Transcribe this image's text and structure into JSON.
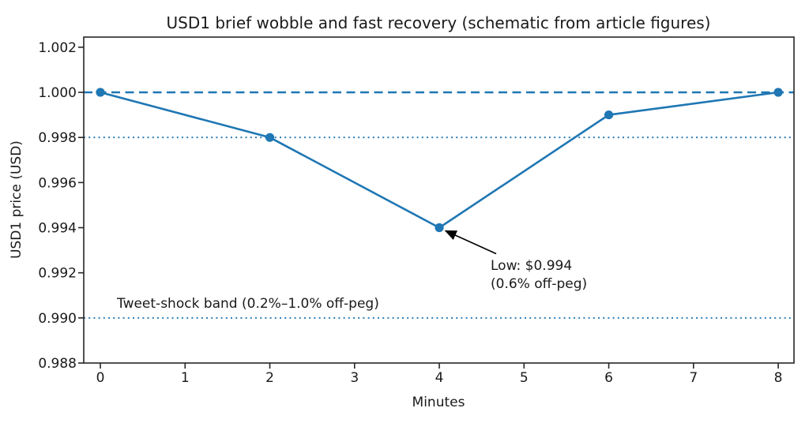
{
  "chart_data": {
    "type": "line",
    "title": "USD1 brief wobble and fast recovery (schematic from article figures)",
    "xlabel": "Minutes",
    "ylabel": "USD1 price (USD)",
    "x": [
      0,
      2,
      4,
      6,
      8
    ],
    "y": [
      1.0,
      0.998,
      0.994,
      0.999,
      1.0
    ],
    "series_name": "USD1 price",
    "xticks": [
      0,
      1,
      2,
      3,
      4,
      5,
      6,
      7,
      8
    ],
    "xtick_labels": [
      "0",
      "1",
      "2",
      "3",
      "4",
      "5",
      "6",
      "7",
      "8"
    ],
    "yticks": [
      0.988,
      0.99,
      0.992,
      0.994,
      0.996,
      0.998,
      1.0,
      1.002
    ],
    "ytick_labels": [
      "0.988",
      "0.990",
      "0.992",
      "0.994",
      "0.996",
      "0.998",
      "1.000",
      "1.002"
    ],
    "xlim": [
      -0.196,
      8.186
    ],
    "ylim": [
      0.988,
      1.002449
    ],
    "grid": false,
    "legend_position": "none",
    "line_color": "#1f77b4",
    "marker": "circle",
    "reference_lines": [
      {
        "name": "peg-line",
        "y": 1.0,
        "style": "dashed",
        "color": "#1f77b4"
      },
      {
        "name": "band-upper",
        "y": 0.998,
        "style": "dotted",
        "color": "#1f77b4"
      },
      {
        "name": "band-lower",
        "y": 0.99,
        "style": "dotted",
        "color": "#1f77b4"
      }
    ],
    "annotation": {
      "line1": "Low: $0.994",
      "line2": "(0.6% off-peg)",
      "target_x": 4,
      "target_y": 0.994,
      "arrow_color": "#000000"
    },
    "band_label": "Tweet-shock band (0.2%–1.0% off-peg)",
    "text_color": "#1a1a1a",
    "spine_color": "#262626"
  }
}
